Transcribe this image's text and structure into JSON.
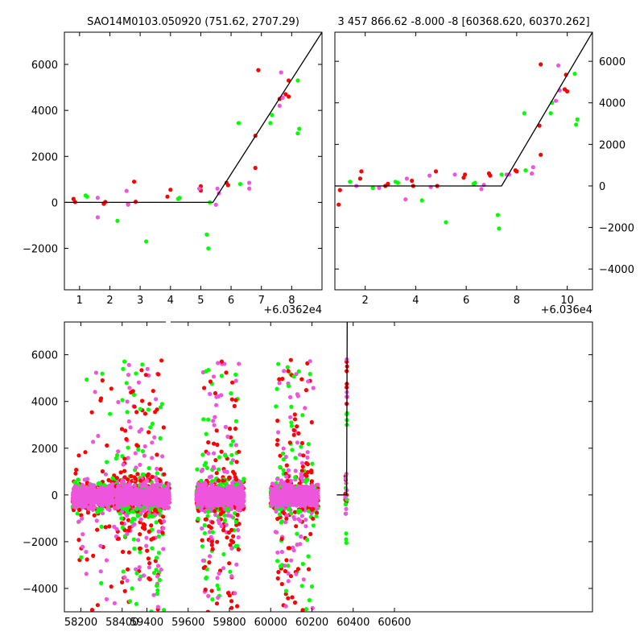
{
  "colors": {
    "red": "#ff0000",
    "green": "#00ff00",
    "magenta": "#ee55dd",
    "line": "#000000"
  },
  "chart_data": [
    {
      "type": "scatter",
      "panel": "top-left",
      "title": "SAO14M0103.050920 (751.62, 2707.29)",
      "x_offset_label": "+6.0362e4",
      "xlim": [
        0.5,
        9.0
      ],
      "ylim": [
        -3800,
        7400
      ],
      "xticks": [
        1,
        2,
        3,
        4,
        5,
        6,
        7,
        8
      ],
      "yticks": [
        -2000,
        0,
        2000,
        4000,
        6000
      ],
      "ytick_side": "left",
      "fit_line": [
        [
          0.5,
          0
        ],
        [
          5.4,
          0
        ],
        [
          9.0,
          7400
        ]
      ],
      "points": {
        "red": [
          [
            0.8,
            150
          ],
          [
            0.85,
            20
          ],
          [
            1.8,
            -60
          ],
          [
            1.85,
            20
          ],
          [
            2.6,
            -80
          ],
          [
            2.8,
            900
          ],
          [
            2.85,
            30
          ],
          [
            3.9,
            250
          ],
          [
            4.0,
            550
          ],
          [
            5.0,
            520
          ],
          [
            5.0,
            700
          ],
          [
            5.9,
            750
          ],
          [
            5.85,
            850
          ],
          [
            6.8,
            1500
          ],
          [
            6.8,
            2900
          ],
          [
            6.9,
            5750
          ],
          [
            7.9,
            4600
          ],
          [
            7.8,
            4700
          ],
          [
            7.9,
            5300
          ],
          [
            7.6,
            4500
          ]
        ],
        "green": [
          [
            1.2,
            300
          ],
          [
            1.25,
            250
          ],
          [
            2.25,
            -800
          ],
          [
            3.2,
            -1700
          ],
          [
            4.3,
            200
          ],
          [
            4.25,
            150
          ],
          [
            5.2,
            -1400
          ],
          [
            5.25,
            -2000
          ],
          [
            5.3,
            0
          ],
          [
            6.25,
            3450
          ],
          [
            6.3,
            800
          ],
          [
            7.3,
            3450
          ],
          [
            7.35,
            3800
          ],
          [
            8.2,
            5300
          ],
          [
            8.25,
            3200
          ],
          [
            8.2,
            3000
          ]
        ],
        "magenta": [
          [
            1.6,
            -650
          ],
          [
            1.6,
            200
          ],
          [
            2.55,
            500
          ],
          [
            2.6,
            -100
          ],
          [
            4.95,
            600
          ],
          [
            5.5,
            -100
          ],
          [
            5.55,
            600
          ],
          [
            5.6,
            400
          ],
          [
            6.6,
            600
          ],
          [
            6.6,
            850
          ],
          [
            7.6,
            4200
          ],
          [
            7.65,
            5650
          ],
          [
            7.7,
            4550
          ]
        ]
      }
    },
    {
      "type": "scatter",
      "panel": "top-right",
      "title": "3 457 866.62 -8.000 -8 [60368.620, 60370.262]",
      "x_offset_label": "+6.036e4",
      "xlim": [
        0.8,
        11.0
      ],
      "ylim": [
        -5000,
        7400
      ],
      "xticks": [
        2,
        4,
        6,
        8,
        10
      ],
      "yticks": [
        -4000,
        -2000,
        0,
        2000,
        4000,
        6000
      ],
      "ytick_side": "right",
      "fit_line": [
        [
          0.8,
          0
        ],
        [
          7.4,
          0
        ],
        [
          11.0,
          7400
        ]
      ],
      "points": {
        "red": [
          [
            0.95,
            -900
          ],
          [
            1.0,
            -200
          ],
          [
            1.8,
            350
          ],
          [
            1.85,
            700
          ],
          [
            2.8,
            0
          ],
          [
            2.9,
            100
          ],
          [
            3.9,
            0
          ],
          [
            3.85,
            250
          ],
          [
            4.8,
            700
          ],
          [
            4.85,
            0
          ],
          [
            5.9,
            400
          ],
          [
            5.95,
            550
          ],
          [
            6.9,
            600
          ],
          [
            6.95,
            500
          ],
          [
            7.95,
            750
          ],
          [
            8.0,
            700
          ],
          [
            8.9,
            2900
          ],
          [
            8.95,
            1500
          ],
          [
            8.95,
            5850
          ],
          [
            9.9,
            4650
          ],
          [
            9.95,
            5350
          ],
          [
            10.0,
            4550
          ]
        ],
        "green": [
          [
            1.4,
            200
          ],
          [
            2.3,
            -100
          ],
          [
            3.2,
            200
          ],
          [
            3.3,
            150
          ],
          [
            4.25,
            -700
          ],
          [
            5.2,
            -1750
          ],
          [
            6.3,
            100
          ],
          [
            6.35,
            150
          ],
          [
            7.25,
            -1400
          ],
          [
            7.3,
            -2050
          ],
          [
            7.4,
            550
          ],
          [
            8.3,
            3500
          ],
          [
            8.35,
            750
          ],
          [
            9.35,
            3500
          ],
          [
            9.4,
            4000
          ],
          [
            10.3,
            5400
          ],
          [
            10.4,
            3200
          ],
          [
            10.35,
            2950
          ]
        ],
        "magenta": [
          [
            1.65,
            0
          ],
          [
            2.55,
            -100
          ],
          [
            3.6,
            -650
          ],
          [
            3.65,
            350
          ],
          [
            4.55,
            500
          ],
          [
            4.6,
            -50
          ],
          [
            5.55,
            550
          ],
          [
            6.6,
            -150
          ],
          [
            6.7,
            50
          ],
          [
            7.6,
            550
          ],
          [
            7.7,
            550
          ],
          [
            8.6,
            600
          ],
          [
            8.65,
            900
          ],
          [
            9.55,
            4100
          ],
          [
            9.65,
            5800
          ],
          [
            9.7,
            4600
          ]
        ]
      }
    },
    {
      "type": "scatter",
      "panel": "bottom",
      "xlim": [
        58120,
        60680
      ],
      "ylim": [
        -5000,
        7400
      ],
      "xticks": [
        58200,
        58400,
        59400,
        59600,
        59800,
        60000,
        60200,
        60400,
        60600
      ],
      "yticks": [
        -4000,
        -2000,
        0,
        2000,
        4000,
        6000
      ],
      "ytick_side": "left",
      "axis_break": 58440,
      "break_shift": 880,
      "seasons": [
        {
          "start": 58160,
          "end": 58410,
          "outliers": 70,
          "seed": 11
        },
        {
          "start": 59250,
          "end": 59510,
          "outliers": 260,
          "seed": 22
        },
        {
          "start": 59640,
          "end": 59870,
          "outliers": 220,
          "seed": 33
        },
        {
          "start": 60000,
          "end": 60230,
          "outliers": 200,
          "seed": 44
        }
      ],
      "fit_line": [
        [
          60320,
          0
        ],
        [
          60368,
          0
        ],
        [
          60371,
          7400
        ]
      ],
      "points": {
        "red": [
          [
            60362,
            50
          ],
          [
            60362,
            -200
          ],
          [
            60363,
            800
          ],
          [
            60364,
            650
          ],
          [
            60368,
            5700
          ],
          [
            60368,
            5300
          ],
          [
            60368,
            4600
          ],
          [
            60369,
            4750
          ],
          [
            60370,
            5500
          ],
          [
            60370,
            4200
          ],
          [
            60368,
            3900
          ],
          [
            60368,
            0
          ],
          [
            60367,
            -300
          ]
        ],
        "green": [
          [
            60363,
            -400
          ],
          [
            60364,
            300
          ],
          [
            60365,
            -800
          ],
          [
            60366,
            -1650
          ],
          [
            60366,
            -1900
          ],
          [
            60367,
            -2050
          ],
          [
            60368,
            3450
          ],
          [
            60369,
            3200
          ],
          [
            60369,
            3000
          ],
          [
            60370,
            3500
          ],
          [
            60369,
            -200
          ]
        ],
        "magenta": [
          [
            60362,
            -100
          ],
          [
            60363,
            -800
          ],
          [
            60364,
            700
          ],
          [
            60366,
            500
          ],
          [
            60367,
            900
          ],
          [
            60368,
            4200
          ],
          [
            60369,
            5800
          ],
          [
            60369,
            4400
          ],
          [
            60368,
            200
          ],
          [
            60366,
            -600
          ]
        ]
      }
    }
  ]
}
